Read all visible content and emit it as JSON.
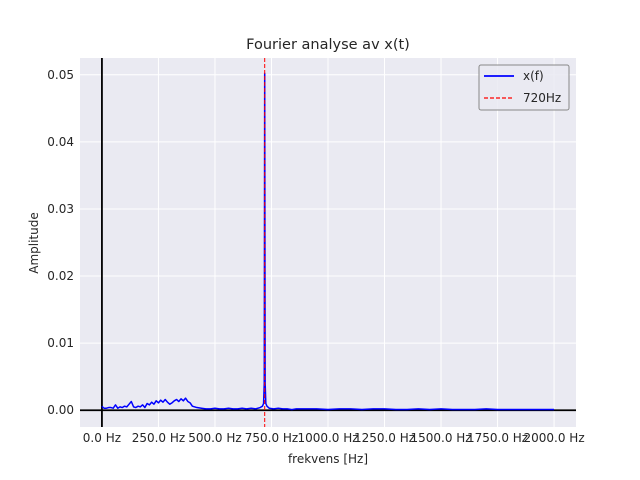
{
  "chart_data": {
    "type": "line",
    "title": "Fourier analyse av x(t)",
    "xlabel": "frekvens [Hz]",
    "ylabel": "Amplitude",
    "xlim": [
      -97,
      2097
    ],
    "ylim": [
      -0.0025,
      0.0525
    ],
    "xticks": [
      {
        "value": 0,
        "label": "0.0 Hz"
      },
      {
        "value": 250,
        "label": "250.0 Hz"
      },
      {
        "value": 500,
        "label": "500.0 Hz"
      },
      {
        "value": 750,
        "label": "750.0 Hz"
      },
      {
        "value": 1000,
        "label": "1000.0 Hz"
      },
      {
        "value": 1250,
        "label": "1250.0 Hz"
      },
      {
        "value": 1500,
        "label": "1500.0 Hz"
      },
      {
        "value": 1750,
        "label": "1750.0 Hz"
      },
      {
        "value": 2000,
        "label": "2000.0 Hz"
      }
    ],
    "yticks": [
      {
        "value": 0.0,
        "label": "0.00"
      },
      {
        "value": 0.01,
        "label": "0.01"
      },
      {
        "value": 0.02,
        "label": "0.02"
      },
      {
        "value": 0.03,
        "label": "0.03"
      },
      {
        "value": 0.04,
        "label": "0.04"
      },
      {
        "value": 0.05,
        "label": "0.05"
      }
    ],
    "grid": true,
    "legend_position": "upper-right",
    "series": [
      {
        "name": "x(f)",
        "color": "#0000ff",
        "style": "solid",
        "x": [
          0,
          5,
          10,
          20,
          30,
          40,
          50,
          60,
          70,
          80,
          90,
          100,
          110,
          120,
          130,
          140,
          150,
          160,
          170,
          180,
          190,
          200,
          210,
          220,
          230,
          240,
          250,
          260,
          270,
          280,
          290,
          300,
          310,
          320,
          330,
          340,
          350,
          360,
          370,
          380,
          390,
          400,
          420,
          440,
          460,
          480,
          500,
          520,
          540,
          560,
          580,
          600,
          620,
          640,
          660,
          680,
          700,
          710,
          715,
          718,
          720,
          722,
          725,
          730,
          740,
          760,
          780,
          800,
          820,
          840,
          860,
          880,
          900,
          950,
          1000,
          1050,
          1100,
          1150,
          1200,
          1250,
          1300,
          1350,
          1400,
          1450,
          1500,
          1550,
          1600,
          1650,
          1700,
          1750,
          1800,
          1850,
          1900,
          1950,
          2000
        ],
        "y": [
          0.0006,
          0.0004,
          0.0003,
          0.0003,
          0.0004,
          0.0004,
          0.0003,
          0.0008,
          0.0003,
          0.0005,
          0.0004,
          0.0006,
          0.0005,
          0.0009,
          0.0013,
          0.0005,
          0.0004,
          0.0006,
          0.0005,
          0.0008,
          0.0004,
          0.001,
          0.0008,
          0.0012,
          0.0009,
          0.0014,
          0.0011,
          0.0015,
          0.0012,
          0.0016,
          0.0012,
          0.0009,
          0.0011,
          0.0014,
          0.0016,
          0.0013,
          0.0017,
          0.0014,
          0.0018,
          0.0013,
          0.0011,
          0.0006,
          0.0004,
          0.0003,
          0.0002,
          0.0002,
          0.0003,
          0.0002,
          0.0002,
          0.0003,
          0.0002,
          0.0002,
          0.0003,
          0.0002,
          0.0003,
          0.0002,
          0.0004,
          0.0006,
          0.001,
          0.004,
          0.0502,
          0.004,
          0.001,
          0.0006,
          0.0003,
          0.0002,
          0.0003,
          0.0002,
          0.0002,
          0.0001,
          0.0002,
          0.0002,
          0.0002,
          0.0002,
          0.0001,
          0.0002,
          0.0002,
          0.0001,
          0.0002,
          0.0002,
          0.0001,
          0.0001,
          0.0002,
          0.0001,
          0.0002,
          0.0001,
          0.0001,
          0.0001,
          0.0002,
          0.0001,
          0.0001,
          0.0001,
          0.0001,
          0.0001,
          0.0001
        ]
      },
      {
        "name": "720Hz",
        "color": "#ff0000",
        "style": "dashed",
        "x_value": 720
      }
    ],
    "reference_lines": {
      "x": 0,
      "y": 0,
      "color": "#000000"
    }
  }
}
